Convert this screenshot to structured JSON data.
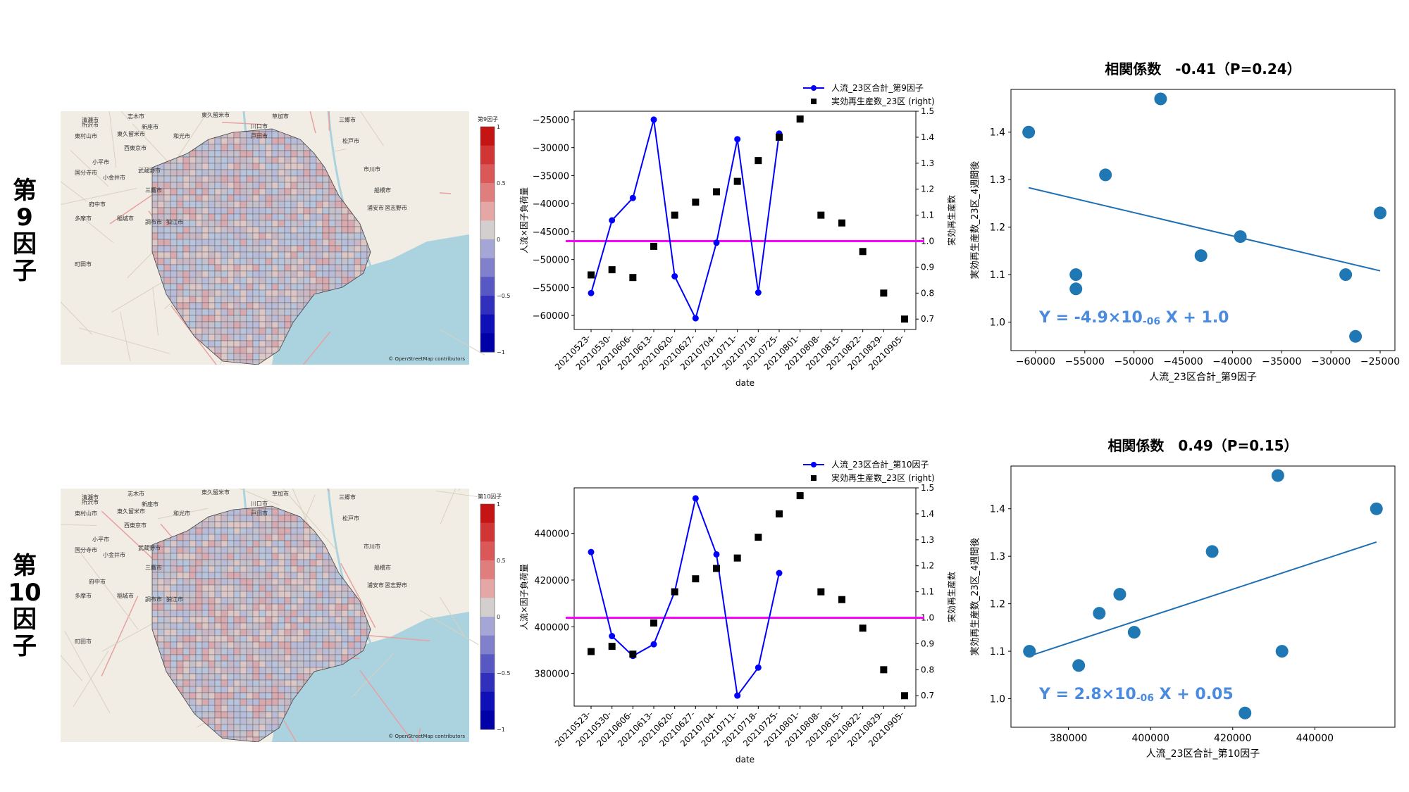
{
  "panels": [
    {
      "label": [
        "第",
        "9",
        "因",
        "子"
      ],
      "map": {
        "colorbar_title": "第9因子",
        "colorbar_ticks": [
          "1",
          "0.5",
          "0",
          "−0.5",
          "−1"
        ],
        "attribution": "© OpenStreetMap contributors",
        "place_labels": [
          "志木市",
          "東久留米市",
          "所沢市",
          "新座市",
          "草加市",
          "三郷市",
          "清瀬市",
          "東村山市",
          "東久留米市",
          "西東京市",
          "和光市",
          "戸田市",
          "川口市",
          "松戸市",
          "国分寺市",
          "小金井市",
          "武蔵野市",
          "小平市",
          "三鷹市",
          "市川市",
          "府中市",
          "調布市",
          "船橋市",
          "多摩市",
          "稲城市",
          "狛江市",
          "浦安市",
          "習志野市",
          "町田市"
        ]
      },
      "line_chart": {
        "legend": [
          "人流_23区合計_第9因子",
          "実効再生産数_23区 (right)"
        ],
        "ylabel_left": "人流×因子負荷量",
        "ylabel_right": "実効再生産数",
        "xlabel": "date"
      },
      "scatter": {
        "title": "相関係数　-0.41（P=0.24）",
        "xlabel": "人流_23区合計_第9因子",
        "ylabel": "実効再生産数_23区_4週間後",
        "equation": "Y = -4.9×10",
        "equation_exp": "-06",
        "equation_tail": " X + 1.0"
      }
    },
    {
      "label": [
        "第",
        "10",
        "因",
        "子"
      ],
      "map": {
        "colorbar_title": "第10因子",
        "colorbar_ticks": [
          "1",
          "0.5",
          "0",
          "−0.5",
          "−1"
        ],
        "attribution": "© OpenStreetMap contributors",
        "place_labels": [
          "志木市",
          "東久留米市",
          "所沢市",
          "新座市",
          "草加市",
          "三郷市",
          "清瀬市",
          "東村山市",
          "東久留米市",
          "西東京市",
          "和光市",
          "戸田市",
          "川口市",
          "松戸市",
          "国分寺市",
          "小金井市",
          "武蔵野市",
          "小平市",
          "三鷹市",
          "市川市",
          "府中市",
          "調布市",
          "船橋市",
          "多摩市",
          "稲城市",
          "狛江市",
          "浦安市",
          "習志野市",
          "町田市"
        ]
      },
      "line_chart": {
        "legend": [
          "人流_23区合計_第10因子",
          "実効再生産数_23区 (right)"
        ],
        "ylabel_left": "人流×因子負荷量",
        "ylabel_right": "実効再生産数",
        "xlabel": "date"
      },
      "scatter": {
        "title": "相関係数　0.49（P=0.15）",
        "xlabel": "人流_23区合計_第10因子",
        "ylabel": "実効再生産数_23区_4週間後",
        "equation": "Y = 2.8×10",
        "equation_exp": "-06",
        "equation_tail": " X + 0.05"
      }
    }
  ],
  "chart_data": [
    {
      "type": "line",
      "categories": [
        "20210523-",
        "20210530-",
        "20210606-",
        "20210613-",
        "20210620-",
        "20210627-",
        "20210704-",
        "20210711-",
        "20210718-",
        "20210725-",
        "20210801-",
        "20210808-",
        "20210815-",
        "20210822-",
        "20210829-",
        "20210905-"
      ],
      "series": [
        {
          "name": "人流_23区合計_第9因子",
          "axis": "left",
          "values": [
            -56000,
            -43000,
            -39000,
            -25000,
            -53000,
            -60500,
            -47000,
            -28500,
            -55900,
            -27500,
            null,
            null,
            null,
            null,
            null,
            null
          ]
        },
        {
          "name": "実効再生産数_23区 (right)",
          "axis": "right",
          "values": [
            0.87,
            0.89,
            0.86,
            0.98,
            1.1,
            1.15,
            1.19,
            1.23,
            1.31,
            1.4,
            1.47,
            1.1,
            1.07,
            0.96,
            0.8,
            0.7
          ]
        }
      ],
      "hline": 1.0,
      "ylim_left": [
        -62500,
        -23500
      ],
      "yticks_left": [
        -60000,
        -55000,
        -50000,
        -45000,
        -40000,
        -35000,
        -30000,
        -25000
      ],
      "ylim_right": [
        0.66,
        1.5
      ],
      "yticks_right": [
        0.7,
        0.8,
        0.9,
        1.0,
        1.1,
        1.2,
        1.3,
        1.4,
        1.5
      ]
    },
    {
      "type": "scatter",
      "x": [
        -60700,
        -55900,
        -55900,
        -52900,
        -47300,
        -43200,
        -39200,
        -28500,
        -27500,
        -25000
      ],
      "y": [
        1.4,
        1.1,
        1.07,
        1.31,
        1.47,
        1.14,
        1.18,
        1.1,
        0.97,
        1.23
      ],
      "fit": {
        "slope": -4.9e-06,
        "intercept_at": [
          [
            -60700,
            1.283
          ],
          [
            -25000,
            1.108
          ]
        ]
      },
      "xlim": [
        -62500,
        -23500
      ],
      "xticks": [
        -60000,
        -55000,
        -50000,
        -45000,
        -40000,
        -35000,
        -30000,
        -25000
      ],
      "ylim": [
        0.94,
        1.49
      ],
      "yticks": [
        1.0,
        1.1,
        1.2,
        1.3,
        1.4
      ]
    },
    {
      "type": "line",
      "categories": [
        "20210523-",
        "20210530-",
        "20210606-",
        "20210613-",
        "20210620-",
        "20210627-",
        "20210704-",
        "20210711-",
        "20210718-",
        "20210725-",
        "20210801-",
        "20210808-",
        "20210815-",
        "20210822-",
        "20210829-",
        "20210905-"
      ],
      "series": [
        {
          "name": "人流_23区合計_第10因子",
          "axis": "left",
          "values": [
            432000,
            396000,
            387500,
            392500,
            415000,
            455000,
            431000,
            370500,
            382500,
            423000,
            null,
            null,
            null,
            null,
            null,
            null
          ]
        },
        {
          "name": "実効再生産数_23区 (right)",
          "axis": "right",
          "values": [
            0.87,
            0.89,
            0.86,
            0.98,
            1.1,
            1.15,
            1.19,
            1.23,
            1.31,
            1.4,
            1.47,
            1.1,
            1.07,
            0.96,
            0.8,
            0.7
          ]
        }
      ],
      "hline": 1.0,
      "ylim_left": [
        366000,
        459500
      ],
      "yticks_left": [
        380000,
        400000,
        420000,
        440000
      ],
      "ylim_right": [
        0.66,
        1.5
      ],
      "yticks_right": [
        0.7,
        0.8,
        0.9,
        1.0,
        1.1,
        1.2,
        1.3,
        1.4,
        1.5
      ]
    },
    {
      "type": "scatter",
      "x": [
        370500,
        382500,
        387500,
        392500,
        396000,
        415000,
        423000,
        431000,
        432000,
        455000
      ],
      "y": [
        1.1,
        1.07,
        1.18,
        1.22,
        1.14,
        1.31,
        0.97,
        1.47,
        1.1,
        1.4
      ],
      "fit": {
        "slope": 2.8e-06,
        "intercept_at": [
          [
            370500,
            1.09
          ],
          [
            455000,
            1.33
          ]
        ]
      },
      "xlim": [
        366000,
        459500
      ],
      "xticks": [
        380000,
        400000,
        420000,
        440000
      ],
      "ylim": [
        0.94,
        1.49
      ],
      "yticks": [
        1.0,
        1.1,
        1.2,
        1.3,
        1.4
      ]
    }
  ]
}
